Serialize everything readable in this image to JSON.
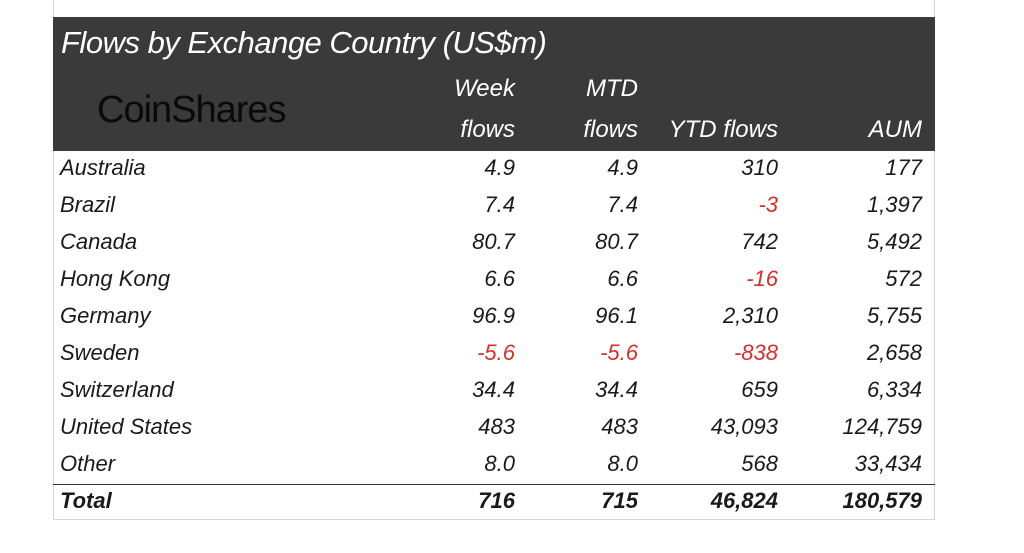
{
  "title": "Flows by Exchange Country (US$m)",
  "logo_text": "CoinShares",
  "columns": [
    {
      "line1": "Week",
      "line2": "flows"
    },
    {
      "line1": "MTD",
      "line2": "flows"
    },
    {
      "line1": "",
      "line2": "YTD flows"
    },
    {
      "line1": "",
      "line2": "AUM"
    }
  ],
  "colors": {
    "header_bg": "#3a3a3a",
    "negative": "#d0312d",
    "text": "#1a1a1a"
  },
  "chart_data": {
    "type": "table",
    "title": "Flows by Exchange Country (US$m)",
    "headers": [
      "",
      "Week flows",
      "MTD flows",
      "YTD flows",
      "AUM"
    ],
    "rows": [
      {
        "country": "Australia",
        "values": [
          "4.9",
          "4.9",
          "310",
          "177"
        ]
      },
      {
        "country": "Brazil",
        "values": [
          "7.4",
          "7.4",
          "-3",
          "1,397"
        ]
      },
      {
        "country": "Canada",
        "values": [
          "80.7",
          "80.7",
          "742",
          "5,492"
        ]
      },
      {
        "country": "Hong Kong",
        "values": [
          "6.6",
          "6.6",
          "-16",
          "572"
        ]
      },
      {
        "country": "Germany",
        "values": [
          "96.9",
          "96.1",
          "2,310",
          "5,755"
        ]
      },
      {
        "country": "Sweden",
        "values": [
          "-5.6",
          "-5.6",
          "-838",
          "2,658"
        ]
      },
      {
        "country": "Switzerland",
        "values": [
          "34.4",
          "34.4",
          "659",
          "6,334"
        ]
      },
      {
        "country": "United States",
        "values": [
          "483",
          "483",
          "43,093",
          "124,759"
        ]
      },
      {
        "country": "Other",
        "values": [
          "8.0",
          "8.0",
          "568",
          "33,434"
        ]
      }
    ],
    "total": {
      "country": "Total",
      "values": [
        "716",
        "715",
        "46,824",
        "180,579"
      ]
    }
  }
}
